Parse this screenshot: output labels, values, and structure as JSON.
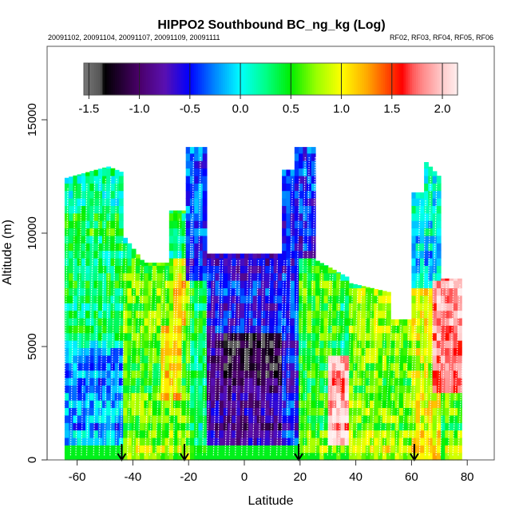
{
  "chart_data": {
    "type": "heatmap",
    "title": "HIPPO2 Southbound BC_ng_kg (Log)",
    "subtitle_left": "20091102, 20091104, 20091107, 20091109, 20091111",
    "subtitle_right": "RF02, RF03, RF04, RF05, RF06",
    "xlabel": "Latitude",
    "ylabel": "Altitude (m)",
    "xlim": [
      -70,
      90
    ],
    "ylim": [
      0,
      17800
    ],
    "xticks": [
      -60,
      -40,
      -20,
      0,
      20,
      40,
      60,
      80
    ],
    "xtick_labels": [
      "-60",
      "-40",
      "-20",
      "0",
      "20",
      "40",
      "60",
      "80"
    ],
    "yticks": [
      0,
      5000,
      10000,
      15000
    ],
    "ytick_labels": [
      "0",
      "5000",
      "10000",
      "15000"
    ],
    "colorbar": {
      "range": [
        -1.55,
        2.15
      ],
      "ticks": [
        -1.5,
        -1.0,
        -0.5,
        0.0,
        0.5,
        1.0,
        1.5,
        2.0
      ],
      "tick_labels": [
        "-1.5",
        "-1.0",
        "-0.5",
        "0.0",
        "0.5",
        "1.0",
        "1.5",
        "2.0"
      ],
      "stops": [
        {
          "v": -1.55,
          "c": "#777777"
        },
        {
          "v": -1.38,
          "c": "#555555"
        },
        {
          "v": -1.35,
          "c": "#000000"
        },
        {
          "v": -1.0,
          "c": "#4a006a"
        },
        {
          "v": -0.75,
          "c": "#5a10b0"
        },
        {
          "v": -0.5,
          "c": "#0000ff"
        },
        {
          "v": -0.25,
          "c": "#0088ff"
        },
        {
          "v": 0.0,
          "c": "#00ffff"
        },
        {
          "v": 0.25,
          "c": "#00ff88"
        },
        {
          "v": 0.5,
          "c": "#00ee00"
        },
        {
          "v": 0.75,
          "c": "#99ff00"
        },
        {
          "v": 1.0,
          "c": "#ffff00"
        },
        {
          "v": 1.25,
          "c": "#ffaa00"
        },
        {
          "v": 1.5,
          "c": "#ff3300"
        },
        {
          "v": 1.6,
          "c": "#ff0000"
        },
        {
          "v": 1.7,
          "c": "#ff5555"
        },
        {
          "v": 1.8,
          "c": "#ff8888"
        },
        {
          "v": 1.9,
          "c": "#ffaaaa"
        },
        {
          "v": 2.0,
          "c": "#ffcccc"
        },
        {
          "v": 2.15,
          "c": "#ffeeee"
        }
      ]
    },
    "profile_envelopes": [
      {
        "lat_start": -65,
        "lat_end": -50,
        "top_alt_start": 12400,
        "top_alt_end": 12900
      },
      {
        "lat_start": -50,
        "lat_end": -44,
        "top_alt_start": 13000,
        "top_alt_end": 12700
      },
      {
        "lat_start": -44,
        "lat_end": -36,
        "top_alt_start": 10000,
        "top_alt_end": 8700
      },
      {
        "lat_start": -36,
        "lat_end": -27,
        "top_alt_start": 8700,
        "top_alt_end": 8700
      },
      {
        "lat_start": -27,
        "lat_end": -21,
        "top_alt_start": 11000,
        "top_alt_end": 11000
      },
      {
        "lat_start": -21,
        "lat_end": -14,
        "top_alt_start": 13800,
        "top_alt_end": 13800
      },
      {
        "lat_start": -14,
        "lat_end": 14,
        "top_alt_start": 9100,
        "top_alt_end": 9100
      },
      {
        "lat_start": 14,
        "lat_end": 18,
        "top_alt_start": 12800,
        "top_alt_end": 12800
      },
      {
        "lat_start": 18,
        "lat_end": 26,
        "top_alt_start": 13800,
        "top_alt_end": 13800
      },
      {
        "lat_start": 26,
        "lat_end": 38,
        "top_alt_start": 8800,
        "top_alt_end": 8000
      },
      {
        "lat_start": 38,
        "lat_end": 52,
        "top_alt_start": 7800,
        "top_alt_end": 7400
      },
      {
        "lat_start": 52,
        "lat_end": 60,
        "top_alt_start": 6200,
        "top_alt_end": 6200
      },
      {
        "lat_start": 60,
        "lat_end": 64,
        "top_alt_start": 11800,
        "top_alt_end": 11800
      },
      {
        "lat_start": 64,
        "lat_end": 70,
        "top_alt_start": 13300,
        "top_alt_end": 12500
      },
      {
        "lat_start": 70,
        "lat_end": 78,
        "top_alt_start": 8000,
        "top_alt_end": 8000
      }
    ],
    "regions": [
      {
        "lat": [
          -66,
          -44
        ],
        "alt": [
          0,
          4800
        ],
        "value": -0.2
      },
      {
        "lat": [
          -66,
          -44
        ],
        "alt": [
          4800,
          8000
        ],
        "value": 0.25
      },
      {
        "lat": [
          -66,
          -44
        ],
        "alt": [
          8000,
          11000
        ],
        "value": 0.4
      },
      {
        "lat": [
          -66,
          -44
        ],
        "alt": [
          11000,
          13200
        ],
        "value": 0.1
      },
      {
        "lat": [
          -44,
          -20
        ],
        "alt": [
          0,
          9000
        ],
        "value": 0.6
      },
      {
        "lat": [
          -30,
          -22
        ],
        "alt": [
          2500,
          6000
        ],
        "value": 1.1
      },
      {
        "lat": [
          -25,
          -21
        ],
        "alt": [
          6000,
          9000
        ],
        "value": 1.0
      },
      {
        "lat": [
          -21,
          -14
        ],
        "alt": [
          8000,
          14000
        ],
        "value": -0.4
      },
      {
        "lat": [
          -14,
          14
        ],
        "alt": [
          0,
          9200
        ],
        "value": -0.85
      },
      {
        "lat": [
          -8,
          14
        ],
        "alt": [
          3500,
          5500
        ],
        "value": -1.2
      },
      {
        "lat": [
          -14,
          14
        ],
        "alt": [
          5500,
          9200
        ],
        "value": -0.6
      },
      {
        "lat": [
          14,
          26
        ],
        "alt": [
          0,
          14000
        ],
        "value": -0.5
      },
      {
        "lat": [
          19,
          35
        ],
        "alt": [
          0,
          9000
        ],
        "value": 0.5
      },
      {
        "lat": [
          30,
          38
        ],
        "alt": [
          500,
          4500
        ],
        "value": 1.9
      },
      {
        "lat": [
          38,
          60
        ],
        "alt": [
          0,
          7500
        ],
        "value": 0.7
      },
      {
        "lat": [
          60,
          70
        ],
        "alt": [
          7500,
          13400
        ],
        "value": 0.0
      },
      {
        "lat": [
          60,
          70
        ],
        "alt": [
          0,
          7500
        ],
        "value": 0.9
      },
      {
        "lat": [
          68,
          78
        ],
        "alt": [
          3000,
          8000
        ],
        "value": 1.8
      },
      {
        "lat": [
          72,
          78
        ],
        "alt": [
          0,
          3000
        ],
        "value": 0.6
      }
    ],
    "leg_markers_lat": [
      -44,
      -21.5,
      19.5,
      61
    ]
  }
}
